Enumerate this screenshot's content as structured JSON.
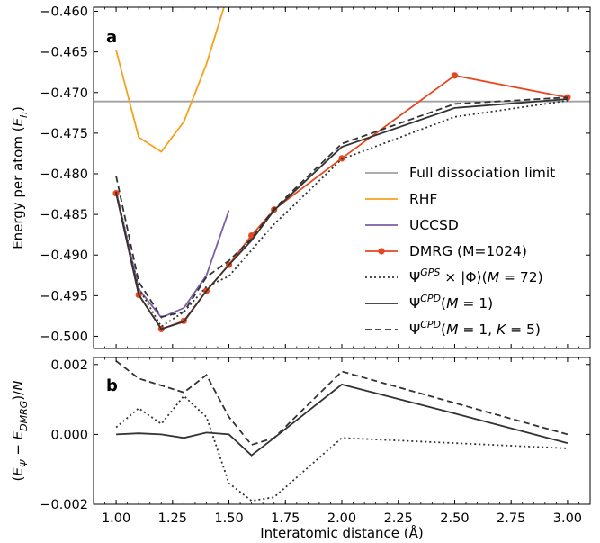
{
  "chart_data": [
    {
      "panel": "a",
      "type": "line",
      "ylabel": "Energy per atom (E_h)",
      "xlabel": "",
      "xlim": [
        0.9,
        3.1
      ],
      "ylim": [
        -0.5015,
        -0.4595
      ],
      "xticks": [
        1.0,
        1.25,
        1.5,
        1.75,
        2.0,
        2.25,
        2.5,
        2.75,
        3.0
      ],
      "yticks": [
        -0.5,
        -0.495,
        -0.49,
        -0.485,
        -0.48,
        -0.475,
        -0.47,
        -0.465,
        -0.46
      ],
      "ytick_labels": [
        "−0.500",
        "−0.495",
        "−0.490",
        "−0.485",
        "−0.480",
        "−0.475",
        "−0.470",
        "−0.465",
        "−0.460"
      ],
      "grid": false,
      "legend_position": "lower-right",
      "hline": {
        "y": -0.4711,
        "color": "#a0a0a0"
      },
      "series": [
        {
          "key": "full",
          "name": "Full dissociation limit",
          "color": "#a0a0a0",
          "style": "solid",
          "markers": false,
          "x": [],
          "y": []
        },
        {
          "key": "rhf",
          "name": "RHF",
          "color": "#f5a21b",
          "style": "solid",
          "markers": false,
          "x": [
            1.0,
            1.1,
            1.2,
            1.3,
            1.4,
            1.5
          ],
          "y": [
            -0.4648,
            -0.4755,
            -0.4773,
            -0.4736,
            -0.4665,
            -0.4575
          ]
        },
        {
          "key": "uccsd",
          "name": "UCCSD",
          "color": "#7b5fa4",
          "style": "solid",
          "markers": false,
          "x": [
            1.0,
            1.1,
            1.2,
            1.3,
            1.4,
            1.5
          ],
          "y": [
            -0.4822,
            -0.4942,
            -0.4977,
            -0.4965,
            -0.4925,
            -0.4845
          ]
        },
        {
          "key": "dmrg",
          "name": "DMRG (M=1024)",
          "color": "#e8461d",
          "style": "solid",
          "markers": true,
          "x": [
            1.0,
            1.1,
            1.2,
            1.3,
            1.4,
            1.5,
            1.6,
            1.7,
            2.0,
            2.5,
            3.0
          ],
          "y": [
            -0.4824,
            -0.4949,
            -0.4991,
            -0.4981,
            -0.4944,
            -0.4912,
            -0.4876,
            -0.4844,
            -0.4781,
            -0.4679,
            -0.4706
          ]
        },
        {
          "key": "gps",
          "name": "Ψ^GPS × |Φ⟩(M = 72)",
          "color": "#333333",
          "style": "dotted",
          "markers": false,
          "x": [
            1.0,
            1.1,
            1.2,
            1.3,
            1.4,
            1.5,
            1.6,
            1.7,
            2.0,
            2.5,
            3.0
          ],
          "y": [
            -0.4822,
            -0.4941,
            -0.4988,
            -0.497,
            -0.4939,
            -0.4926,
            -0.4894,
            -0.4862,
            -0.4782,
            -0.473,
            -0.471
          ]
        },
        {
          "key": "cpd1",
          "name": "Ψ^CPD(M = 1)",
          "color": "#333333",
          "style": "solid",
          "markers": false,
          "x": [
            1.0,
            1.1,
            1.2,
            1.3,
            1.4,
            1.5,
            1.6,
            1.7,
            2.0,
            2.5,
            3.0
          ],
          "y": [
            -0.4824,
            -0.4949,
            -0.4991,
            -0.4982,
            -0.4944,
            -0.4912,
            -0.4882,
            -0.4845,
            -0.4767,
            -0.4719,
            -0.4708
          ]
        },
        {
          "key": "cpd5",
          "name": "Ψ^CPD(M = 1, K = 5)",
          "color": "#333333",
          "style": "dashed",
          "markers": false,
          "x": [
            1.0,
            1.1,
            1.2,
            1.3,
            1.4,
            1.5,
            1.6,
            1.7,
            2.0,
            2.5,
            3.0
          ],
          "y": [
            -0.4803,
            -0.4933,
            -0.4976,
            -0.497,
            -0.4927,
            -0.4907,
            -0.488,
            -0.4843,
            -0.4763,
            -0.4714,
            -0.4706
          ]
        }
      ]
    },
    {
      "panel": "b",
      "type": "line",
      "ylabel": "(E_Ψ − E_DMRG)/N",
      "xlabel": "Interatomic distance (Å)",
      "xlim": [
        0.9,
        3.1
      ],
      "ylim": [
        -0.002,
        0.0022
      ],
      "xticks": [
        1.0,
        1.25,
        1.5,
        1.75,
        2.0,
        2.25,
        2.5,
        2.75,
        3.0
      ],
      "xtick_labels": [
        "1.00",
        "1.25",
        "1.50",
        "1.75",
        "2.00",
        "2.25",
        "2.50",
        "2.75",
        "3.00"
      ],
      "yticks": [
        -0.002,
        0.0,
        0.002
      ],
      "ytick_labels": [
        "−0.002",
        "0.000",
        "0.002"
      ],
      "grid": false,
      "series": [
        {
          "key": "gps",
          "color": "#333333",
          "style": "dotted",
          "x": [
            1.0,
            1.1,
            1.2,
            1.3,
            1.4,
            1.5,
            1.6,
            1.7,
            2.0,
            2.5,
            3.0
          ],
          "y": [
            0.0002,
            0.00075,
            0.0003,
            0.0011,
            0.0005,
            -0.0014,
            -0.0019,
            -0.0018,
            -0.0001,
            -0.00025,
            -0.0004
          ]
        },
        {
          "key": "cpd1",
          "color": "#333333",
          "style": "solid",
          "x": [
            1.0,
            1.1,
            1.2,
            1.3,
            1.4,
            1.5,
            1.6,
            1.7,
            2.0,
            2.5,
            3.0
          ],
          "y": [
            0.0,
            3e-05,
            0.0,
            -0.0001,
            5e-05,
            0.0,
            -0.0006,
            -0.0001,
            0.00143,
            0.0006,
            -0.00025
          ]
        },
        {
          "key": "cpd5",
          "color": "#333333",
          "style": "dashed",
          "x": [
            1.0,
            1.1,
            1.2,
            1.3,
            1.4,
            1.5,
            1.6,
            1.7,
            2.0,
            2.5,
            3.0
          ],
          "y": [
            0.0021,
            0.0016,
            0.0014,
            0.0012,
            0.0017,
            0.0005,
            -0.0003,
            -0.0001,
            0.0018,
            0.0009,
            0.0
          ]
        }
      ]
    }
  ]
}
